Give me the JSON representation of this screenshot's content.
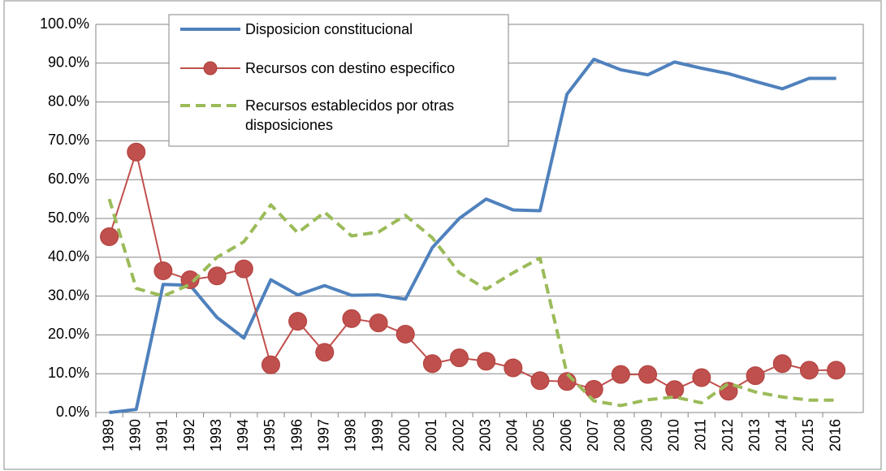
{
  "chart_data": {
    "type": "line",
    "categories": [
      "1989",
      "1990",
      "1991",
      "1992",
      "1993",
      "1994",
      "1995",
      "1996",
      "1997",
      "1998",
      "1999",
      "2000",
      "2001",
      "2002",
      "2003",
      "2004",
      "2005",
      "2006",
      "2007",
      "2008",
      "2009",
      "2010",
      "2011",
      "2012",
      "2013",
      "2014",
      "2015",
      "2016"
    ],
    "series": [
      {
        "name": "Disposicion constitucional",
        "color": "#4f81bd",
        "style": "solid",
        "values": [
          0,
          0.8,
          33,
          32.8,
          24.5,
          19.2,
          34.2,
          30.3,
          32.7,
          30.2,
          30.3,
          29.2,
          42.5,
          50,
          55,
          52.2,
          52,
          82,
          91,
          88.3,
          87,
          90.3,
          88.7,
          87.3,
          85.3,
          83.4,
          86.1,
          86.1
        ]
      },
      {
        "name": "Recursos con destino especifico",
        "color": "#c0504d",
        "style": "marker",
        "values": [
          45.3,
          67.1,
          36.5,
          34.2,
          35.2,
          37,
          12.3,
          23.5,
          15.5,
          24.2,
          23.1,
          20.2,
          12.6,
          14.1,
          13.2,
          11.5,
          8.2,
          8,
          6,
          9.8,
          9.8,
          5.9,
          9,
          5.5,
          9.5,
          12.6,
          10.9,
          10.9
        ]
      },
      {
        "name": "Recursos establecidos por otras disposiciones",
        "color": "#9bbb59",
        "style": "dashed",
        "values": [
          55,
          32,
          30,
          33,
          40,
          44,
          53.5,
          46.3,
          51.6,
          45.5,
          46.5,
          50.8,
          45,
          36,
          31.8,
          36,
          39.8,
          10,
          3,
          1.8,
          3.3,
          4,
          2.5,
          7.5,
          5.3,
          4,
          3.2,
          3.2
        ]
      }
    ],
    "ylim": [
      0,
      100
    ],
    "yticks": [
      {
        "value": 0,
        "label": "0.0%"
      },
      {
        "value": 10,
        "label": "10.0%"
      },
      {
        "value": 20,
        "label": "20.0%"
      },
      {
        "value": 30,
        "label": "30.0%"
      },
      {
        "value": 40,
        "label": "40.0%"
      },
      {
        "value": 50,
        "label": "50.0%"
      },
      {
        "value": 60,
        "label": "60.0%"
      },
      {
        "value": 70,
        "label": "70.0%"
      },
      {
        "value": 80,
        "label": "80.0%"
      },
      {
        "value": 90,
        "label": "90.0%"
      },
      {
        "value": 100,
        "label": "100.0%"
      }
    ],
    "grid": true
  }
}
